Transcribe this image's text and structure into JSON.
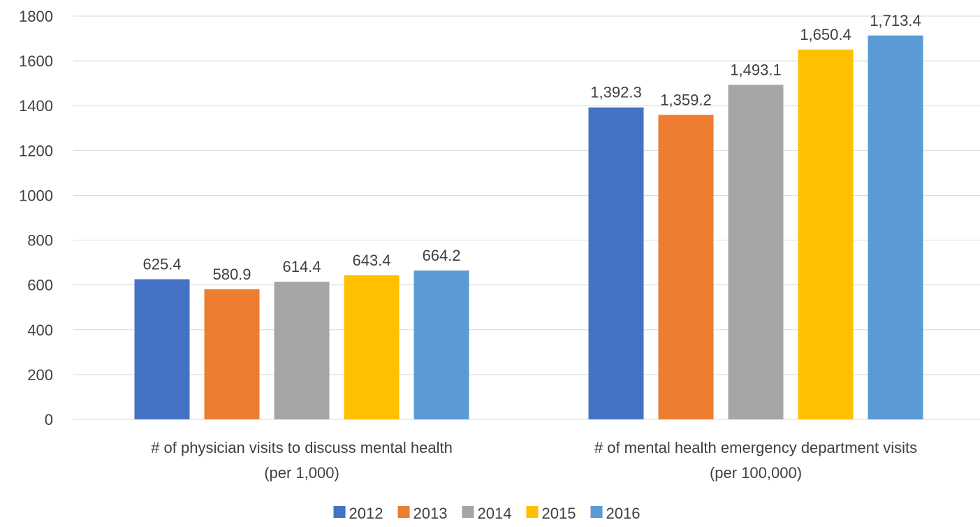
{
  "chart_data": {
    "type": "bar",
    "categories": [
      [
        "# of physician visits to discuss mental health",
        "(per 1,000)"
      ],
      [
        "# of mental health emergency department visits",
        "(per 100,000)"
      ]
    ],
    "series": [
      {
        "name": "2012",
        "color": "#4472c4",
        "values": [
          625.4,
          1392.3
        ],
        "labels": [
          "625.4",
          "1,392.3"
        ]
      },
      {
        "name": "2013",
        "color": "#ed7d31",
        "values": [
          580.9,
          1359.2
        ],
        "labels": [
          "580.9",
          "1,359.2"
        ]
      },
      {
        "name": "2014",
        "color": "#a5a5a5",
        "values": [
          614.4,
          1493.1
        ],
        "labels": [
          "614.4",
          "1,493.1"
        ]
      },
      {
        "name": "2015",
        "color": "#ffc000",
        "values": [
          643.4,
          1650.4
        ],
        "labels": [
          "643.4",
          "1,650.4"
        ]
      },
      {
        "name": "2016",
        "color": "#5b9bd5",
        "values": [
          664.2,
          1713.4
        ],
        "labels": [
          "664.2",
          "1,713.4"
        ]
      }
    ],
    "yticks": [
      "0",
      "200",
      "400",
      "600",
      "800",
      "1000",
      "1200",
      "1400",
      "1600",
      "1800"
    ],
    "ylim": [
      0,
      1800
    ],
    "grid": true,
    "legend_position": "bottom",
    "title": "",
    "xlabel": "",
    "ylabel": ""
  }
}
